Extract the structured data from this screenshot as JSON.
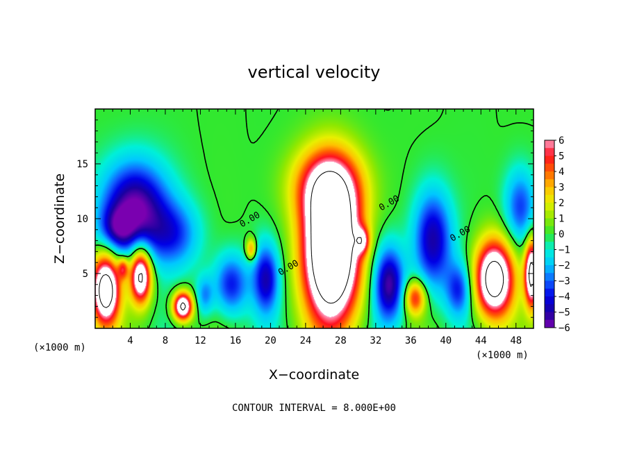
{
  "chart_data": {
    "type": "heatmap",
    "title": "vertical velocity",
    "xlabel": "X−coordinate",
    "ylabel": "Z−coordinate",
    "x_unit_left": "(×1000 m)",
    "x_unit_right": "(×1000 m)",
    "xlim": [
      0,
      50
    ],
    "ylim": [
      0,
      20
    ],
    "x_ticks": [
      4,
      8,
      12,
      16,
      20,
      24,
      28,
      32,
      36,
      40,
      44,
      48
    ],
    "y_ticks": [
      5,
      10,
      15
    ],
    "colorbar": {
      "range": [
        -6,
        6
      ],
      "labels": [
        "6",
        "5",
        "4",
        "3",
        "2",
        "1",
        "0",
        "−1",
        "−2",
        "−3",
        "−4",
        "−5",
        "−6"
      ],
      "stops": [
        {
          "value": -6,
          "color": "#7a00b0"
        },
        {
          "value": -5,
          "color": "#1a00a0"
        },
        {
          "value": -4,
          "color": "#0000e6"
        },
        {
          "value": -3,
          "color": "#1060ff"
        },
        {
          "value": -2,
          "color": "#00c8ff"
        },
        {
          "value": -1,
          "color": "#00f0d8"
        },
        {
          "value": 0,
          "color": "#30e830"
        },
        {
          "value": 1,
          "color": "#90e800"
        },
        {
          "value": 2,
          "color": "#e8f000"
        },
        {
          "value": 3,
          "color": "#ffc000"
        },
        {
          "value": 4,
          "color": "#ff6000"
        },
        {
          "value": 5,
          "color": "#ff1020"
        },
        {
          "value": 6,
          "color": "#ff9cc0"
        }
      ],
      "over_color": "#ffffff"
    },
    "features": [
      {
        "x": 27,
        "z": 7,
        "rx": 3.2,
        "rz": 6.5,
        "amp": 13
      },
      {
        "x": 26.5,
        "z": 13,
        "rx": 4,
        "rz": 3.5,
        "amp": 5
      },
      {
        "x": 45.5,
        "z": 4.5,
        "rx": 2.2,
        "rz": 3.5,
        "amp": 10
      },
      {
        "x": 1.2,
        "z": 3.5,
        "rx": 1.6,
        "rz": 3.2,
        "amp": 10
      },
      {
        "x": 5.2,
        "z": 4.8,
        "rx": 1.2,
        "rz": 2.5,
        "amp": 9
      },
      {
        "x": 10,
        "z": 2,
        "rx": 1.1,
        "rz": 1.3,
        "amp": 9
      },
      {
        "x": 36.5,
        "z": 2.8,
        "rx": 1.2,
        "rz": 1.6,
        "amp": 5
      },
      {
        "x": 49.8,
        "z": 5,
        "rx": 0.8,
        "rz": 3,
        "amp": 9
      },
      {
        "x": 17.8,
        "z": 7.2,
        "rx": 0.6,
        "rz": 1,
        "amp": 4
      },
      {
        "x": 3.2,
        "z": 5.5,
        "rx": 0.6,
        "rz": 1,
        "amp": 4
      },
      {
        "x": 30.5,
        "z": 8,
        "rx": 0.8,
        "rz": 1.2,
        "amp": 4
      },
      {
        "x": 4.5,
        "z": 11,
        "rx": 3.8,
        "rz": 4.2,
        "amp": -6
      },
      {
        "x": 9,
        "z": 8.5,
        "rx": 3,
        "rz": 3,
        "amp": -3
      },
      {
        "x": 15.5,
        "z": 4,
        "rx": 2,
        "rz": 2.8,
        "amp": -4
      },
      {
        "x": 19.5,
        "z": 4.5,
        "rx": 1.5,
        "rz": 3.2,
        "amp": -4.5
      },
      {
        "x": 33.5,
        "z": 4,
        "rx": 1.8,
        "rz": 3.5,
        "amp": -5.5
      },
      {
        "x": 38.5,
        "z": 8,
        "rx": 2.2,
        "rz": 4.5,
        "amp": -5
      },
      {
        "x": 41.5,
        "z": 3.5,
        "rx": 1.5,
        "rz": 2.5,
        "amp": -3.5
      },
      {
        "x": 48.5,
        "z": 11,
        "rx": 1.8,
        "rz": 3.5,
        "amp": -3.5
      },
      {
        "x": 12.5,
        "z": 3,
        "rx": 1,
        "rz": 1.8,
        "amp": -2.5
      },
      {
        "x": 2.5,
        "z": 9,
        "rx": 2,
        "rz": 2,
        "amp": -3
      }
    ],
    "contour_zero_labels": [
      {
        "text": "0.00",
        "x": 17.8,
        "z": 9.7
      },
      {
        "text": "0.00",
        "x": 33.7,
        "z": 11.2
      },
      {
        "text": "0.00",
        "x": 41.8,
        "z": 8.4
      },
      {
        "text": "0.00",
        "x": 22.2,
        "z": 5.3
      }
    ]
  },
  "footer": {
    "contour_interval": "CONTOUR INTERVAL = 8.000E+00"
  }
}
